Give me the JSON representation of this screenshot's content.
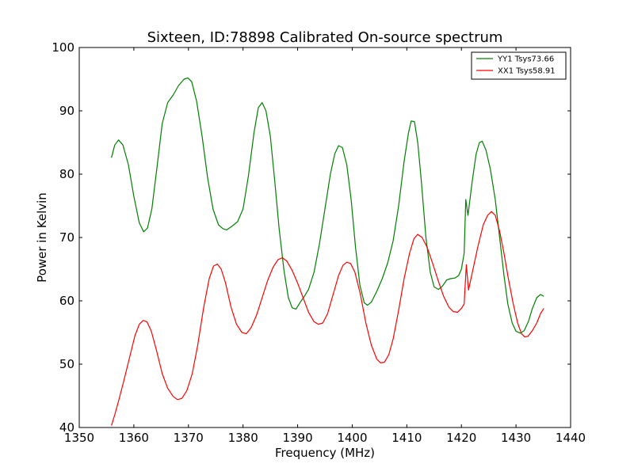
{
  "chart_data": {
    "type": "line",
    "title": "Sixteen, ID:78898 Calibrated On-source spectrum",
    "xlabel": "Frequency (MHz)",
    "ylabel": "Power in Kelvin",
    "xlim": [
      1350,
      1440
    ],
    "ylim": [
      40,
      100
    ],
    "xticks": [
      1350,
      1360,
      1370,
      1380,
      1390,
      1400,
      1410,
      1420,
      1430,
      1440
    ],
    "yticks": [
      40,
      50,
      60,
      70,
      80,
      90,
      100
    ],
    "grid": false,
    "legend_position": "top-right",
    "series": [
      {
        "name": "YY1 Tsys73.66",
        "color": "#008000",
        "points": [
          [
            1355.9,
            82.6
          ],
          [
            1356.5,
            84.6
          ],
          [
            1357.2,
            85.4
          ],
          [
            1358.0,
            84.6
          ],
          [
            1359.0,
            81.5
          ],
          [
            1360.0,
            76.5
          ],
          [
            1361.0,
            72.3
          ],
          [
            1361.8,
            70.9
          ],
          [
            1362.5,
            71.5
          ],
          [
            1363.3,
            74.5
          ],
          [
            1364.3,
            81.5
          ],
          [
            1365.2,
            88.0
          ],
          [
            1366.2,
            91.3
          ],
          [
            1367.2,
            92.5
          ],
          [
            1368.2,
            94.0
          ],
          [
            1369.2,
            95.0
          ],
          [
            1369.9,
            95.2
          ],
          [
            1370.6,
            94.6
          ],
          [
            1371.5,
            91.5
          ],
          [
            1372.5,
            86.0
          ],
          [
            1373.5,
            79.5
          ],
          [
            1374.5,
            74.5
          ],
          [
            1375.5,
            72.0
          ],
          [
            1376.3,
            71.4
          ],
          [
            1377.0,
            71.2
          ],
          [
            1378.0,
            71.8
          ],
          [
            1379.0,
            72.5
          ],
          [
            1380.0,
            74.5
          ],
          [
            1381.0,
            79.8
          ],
          [
            1382.0,
            86.5
          ],
          [
            1382.8,
            90.5
          ],
          [
            1383.5,
            91.3
          ],
          [
            1384.2,
            90.0
          ],
          [
            1385.0,
            86.0
          ],
          [
            1385.8,
            79.0
          ],
          [
            1386.6,
            71.5
          ],
          [
            1387.5,
            64.8
          ],
          [
            1388.3,
            60.5
          ],
          [
            1389.0,
            58.9
          ],
          [
            1389.7,
            58.7
          ],
          [
            1390.5,
            59.8
          ],
          [
            1391.3,
            60.8
          ],
          [
            1392.0,
            61.8
          ],
          [
            1393.0,
            64.5
          ],
          [
            1394.0,
            69.0
          ],
          [
            1395.0,
            74.5
          ],
          [
            1396.0,
            80.0
          ],
          [
            1396.8,
            83.2
          ],
          [
            1397.5,
            84.5
          ],
          [
            1398.2,
            84.2
          ],
          [
            1399.0,
            81.5
          ],
          [
            1399.8,
            76.0
          ],
          [
            1400.6,
            68.5
          ],
          [
            1401.4,
            62.5
          ],
          [
            1402.2,
            59.7
          ],
          [
            1402.8,
            59.3
          ],
          [
            1403.5,
            59.8
          ],
          [
            1404.5,
            61.5
          ],
          [
            1405.5,
            63.5
          ],
          [
            1406.5,
            66.0
          ],
          [
            1407.5,
            69.5
          ],
          [
            1408.5,
            75.0
          ],
          [
            1409.5,
            82.0
          ],
          [
            1410.3,
            86.5
          ],
          [
            1410.8,
            88.4
          ],
          [
            1411.4,
            88.3
          ],
          [
            1412.0,
            85.0
          ],
          [
            1412.7,
            78.5
          ],
          [
            1413.5,
            70.0
          ],
          [
            1414.3,
            64.5
          ],
          [
            1415.0,
            62.2
          ],
          [
            1415.8,
            61.8
          ],
          [
            1416.5,
            62.3
          ],
          [
            1417.3,
            63.3
          ],
          [
            1418.0,
            63.5
          ],
          [
            1418.8,
            63.6
          ],
          [
            1419.5,
            64.0
          ],
          [
            1420.0,
            65.0
          ],
          [
            1420.5,
            67.5
          ],
          [
            1420.8,
            76.0
          ],
          [
            1421.2,
            73.5
          ],
          [
            1422.0,
            79.0
          ],
          [
            1422.7,
            83.2
          ],
          [
            1423.3,
            85.0
          ],
          [
            1423.8,
            85.2
          ],
          [
            1424.5,
            83.8
          ],
          [
            1425.3,
            80.8
          ],
          [
            1426.2,
            76.0
          ],
          [
            1427.0,
            70.0
          ],
          [
            1427.8,
            64.0
          ],
          [
            1428.5,
            59.5
          ],
          [
            1429.3,
            56.5
          ],
          [
            1430.0,
            55.2
          ],
          [
            1430.8,
            54.9
          ],
          [
            1431.5,
            55.3
          ],
          [
            1432.3,
            56.8
          ],
          [
            1433.0,
            58.8
          ],
          [
            1433.8,
            60.5
          ],
          [
            1434.5,
            61.0
          ],
          [
            1435.1,
            60.7
          ]
        ]
      },
      {
        "name": "XX1 Tsys58.91",
        "color": "#ff0000",
        "points": [
          [
            1355.9,
            40.3
          ],
          [
            1356.5,
            42.0
          ],
          [
            1357.3,
            44.5
          ],
          [
            1358.2,
            47.5
          ],
          [
            1359.2,
            51.0
          ],
          [
            1360.2,
            54.5
          ],
          [
            1361.0,
            56.3
          ],
          [
            1361.7,
            56.9
          ],
          [
            1362.4,
            56.7
          ],
          [
            1363.2,
            55.2
          ],
          [
            1364.2,
            52.0
          ],
          [
            1365.2,
            48.5
          ],
          [
            1366.2,
            46.2
          ],
          [
            1367.2,
            44.9
          ],
          [
            1368.0,
            44.4
          ],
          [
            1368.8,
            44.6
          ],
          [
            1369.7,
            45.8
          ],
          [
            1370.7,
            48.5
          ],
          [
            1371.7,
            53.0
          ],
          [
            1372.8,
            59.0
          ],
          [
            1373.8,
            63.5
          ],
          [
            1374.6,
            65.5
          ],
          [
            1375.3,
            65.8
          ],
          [
            1376.0,
            65.0
          ],
          [
            1376.8,
            62.8
          ],
          [
            1377.8,
            59.0
          ],
          [
            1378.8,
            56.3
          ],
          [
            1379.8,
            55.0
          ],
          [
            1380.6,
            54.8
          ],
          [
            1381.5,
            55.8
          ],
          [
            1382.5,
            57.8
          ],
          [
            1383.5,
            60.5
          ],
          [
            1384.5,
            63.2
          ],
          [
            1385.5,
            65.3
          ],
          [
            1386.4,
            66.5
          ],
          [
            1387.2,
            66.8
          ],
          [
            1388.0,
            66.3
          ],
          [
            1389.0,
            64.8
          ],
          [
            1390.0,
            62.8
          ],
          [
            1391.0,
            60.5
          ],
          [
            1392.0,
            58.2
          ],
          [
            1393.0,
            56.7
          ],
          [
            1393.8,
            56.3
          ],
          [
            1394.6,
            56.5
          ],
          [
            1395.5,
            58.0
          ],
          [
            1396.5,
            61.0
          ],
          [
            1397.5,
            64.0
          ],
          [
            1398.3,
            65.6
          ],
          [
            1399.0,
            66.1
          ],
          [
            1399.7,
            65.9
          ],
          [
            1400.5,
            64.5
          ],
          [
            1401.5,
            61.0
          ],
          [
            1402.5,
            56.5
          ],
          [
            1403.5,
            53.0
          ],
          [
            1404.5,
            50.8
          ],
          [
            1405.2,
            50.2
          ],
          [
            1405.9,
            50.3
          ],
          [
            1406.7,
            51.5
          ],
          [
            1407.5,
            54.0
          ],
          [
            1408.5,
            58.5
          ],
          [
            1409.5,
            63.5
          ],
          [
            1410.5,
            67.5
          ],
          [
            1411.3,
            69.8
          ],
          [
            1412.0,
            70.5
          ],
          [
            1412.8,
            70.0
          ],
          [
            1413.7,
            68.5
          ],
          [
            1414.7,
            66.0
          ],
          [
            1415.7,
            63.3
          ],
          [
            1416.7,
            60.8
          ],
          [
            1417.7,
            59.0
          ],
          [
            1418.5,
            58.3
          ],
          [
            1419.3,
            58.2
          ],
          [
            1420.0,
            58.8
          ],
          [
            1420.5,
            59.5
          ],
          [
            1420.9,
            65.7
          ],
          [
            1421.3,
            61.7
          ],
          [
            1422.0,
            64.5
          ],
          [
            1423.0,
            68.5
          ],
          [
            1424.0,
            72.0
          ],
          [
            1424.8,
            73.5
          ],
          [
            1425.5,
            74.1
          ],
          [
            1426.2,
            73.5
          ],
          [
            1427.0,
            71.0
          ],
          [
            1427.8,
            67.5
          ],
          [
            1428.6,
            63.5
          ],
          [
            1429.5,
            59.5
          ],
          [
            1430.3,
            56.5
          ],
          [
            1431.0,
            54.8
          ],
          [
            1431.6,
            54.3
          ],
          [
            1432.2,
            54.4
          ],
          [
            1433.0,
            55.3
          ],
          [
            1433.8,
            56.5
          ],
          [
            1434.5,
            58.0
          ],
          [
            1435.1,
            58.8
          ]
        ]
      }
    ]
  }
}
